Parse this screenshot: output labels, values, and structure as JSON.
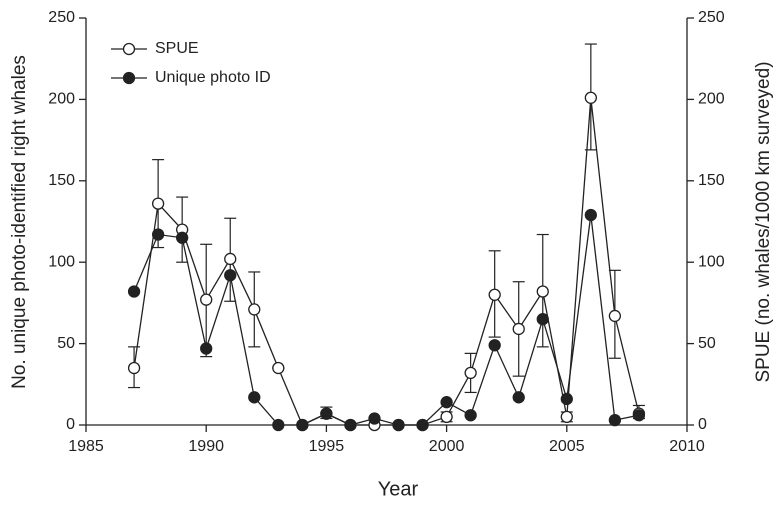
{
  "chart_data": {
    "type": "line",
    "x_label": "Year",
    "y_label": "No. unique photo-identified right whales",
    "y2_label": "SPUE (no. whales/1000 km surveyed)",
    "x": [
      1987,
      1988,
      1989,
      1990,
      1991,
      1992,
      1993,
      1994,
      1995,
      1996,
      1997,
      1998,
      1999,
      2000,
      2001,
      2002,
      2003,
      2004,
      2005,
      2006,
      2007,
      2008
    ],
    "series": [
      {
        "name": "SPUE",
        "color": "#222222",
        "marker": "open",
        "axis": "y2",
        "values": [
          35,
          136,
          120,
          77,
          102,
          71,
          35,
          0,
          7,
          0,
          0,
          0,
          0,
          5,
          32,
          80,
          59,
          82,
          5,
          201,
          67,
          7
        ],
        "error_low": [
          23,
          109,
          100,
          42,
          76,
          48,
          35,
          0,
          4,
          0,
          0,
          0,
          0,
          2,
          20,
          54,
          30,
          48,
          2,
          169,
          41,
          4
        ],
        "error_high": [
          48,
          163,
          140,
          111,
          127,
          94,
          35,
          0,
          11,
          0,
          0,
          0,
          0,
          8,
          44,
          107,
          88,
          117,
          8,
          234,
          95,
          12
        ]
      },
      {
        "name": "Unique photo ID",
        "color": "#222222",
        "marker": "filled",
        "values": [
          82,
          117,
          115,
          47,
          92,
          17,
          0,
          0,
          7,
          0,
          4,
          0,
          0,
          14,
          6,
          49,
          17,
          65,
          16,
          129,
          3,
          6
        ]
      }
    ],
    "xlim": [
      1985,
      2010
    ],
    "xticks": [
      1985,
      1990,
      1995,
      2000,
      2005,
      2010
    ],
    "ylim": [
      0,
      250
    ],
    "yticks": [
      0,
      50,
      100,
      150,
      200,
      250
    ],
    "y2lim": [
      0,
      250
    ],
    "y2ticks": [
      0,
      50,
      100,
      150,
      200,
      250
    ],
    "legend": "upper left"
  }
}
